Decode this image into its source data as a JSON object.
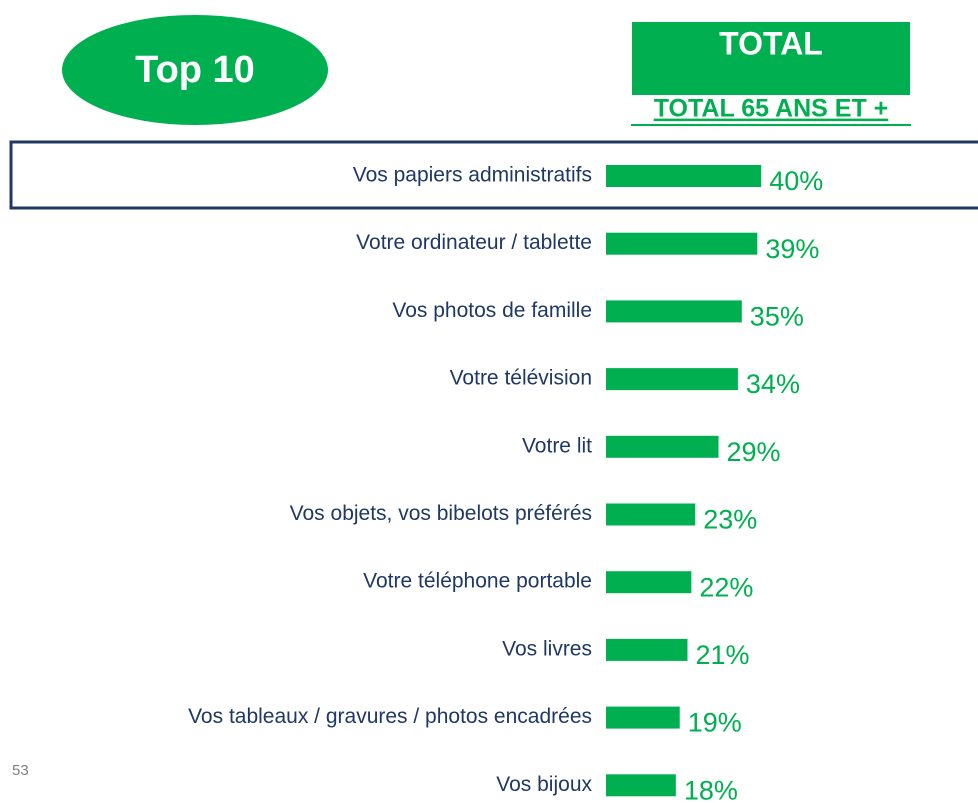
{
  "chart_data": {
    "type": "bar",
    "badge": "Top 10",
    "header": "TOTAL",
    "subtitle": "TOTAL 65 ANS ET +",
    "page_number": "53",
    "color": "#00b050",
    "categories": [
      "Vos papiers administratifs",
      "Votre ordinateur / tablette",
      "Vos photos de famille",
      "Votre télévision",
      "Votre lit",
      "Vos objets, vos bibelots préférés",
      "Votre téléphone portable",
      "Vos livres",
      "Vos tableaux / gravures / photos encadrées",
      "Vos bijoux"
    ],
    "values": [
      40,
      39,
      35,
      34,
      29,
      23,
      22,
      21,
      19,
      18
    ],
    "value_labels": [
      "40%",
      "39%",
      "35%",
      "34%",
      "29%",
      "23%",
      "22%",
      "21%",
      "19%",
      "18%"
    ]
  }
}
